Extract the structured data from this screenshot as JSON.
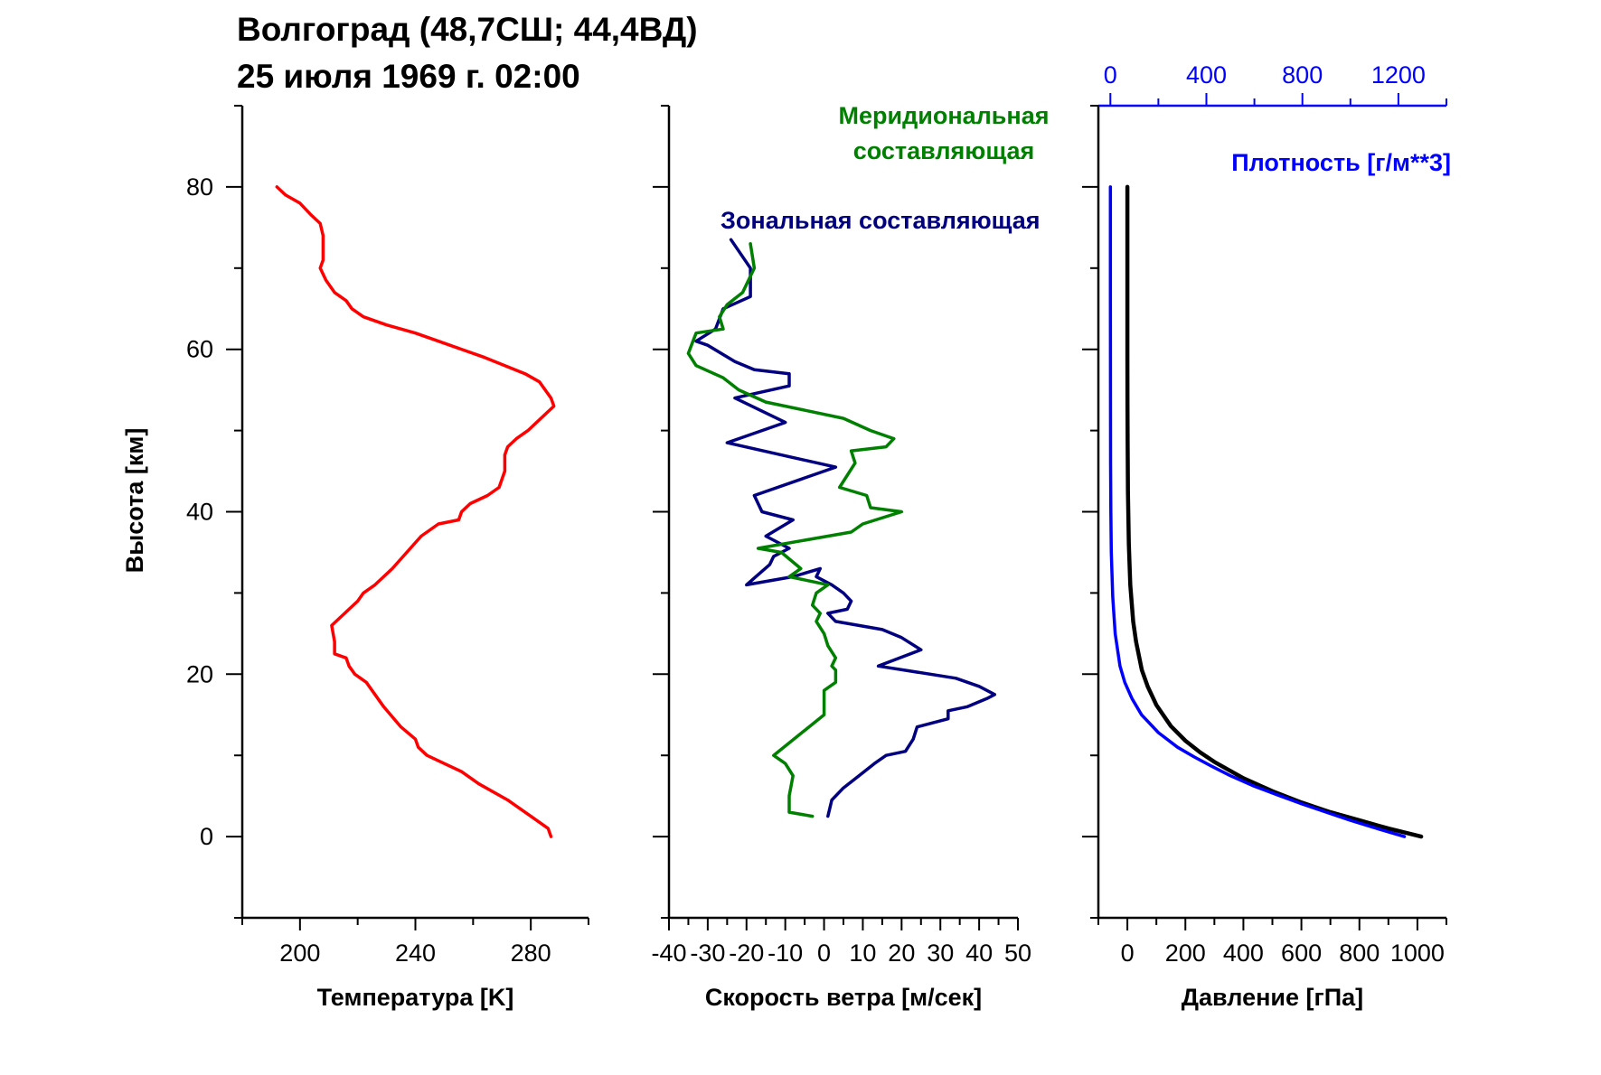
{
  "title": {
    "line1": "Волгоград (48,7СШ; 44,4ВД)",
    "line2": "25 июля 1969 г. 02:00"
  },
  "y_axis": {
    "label": "Высота [км]",
    "ylim": [
      -10,
      90
    ],
    "ticks": [
      0,
      20,
      40,
      60,
      80
    ]
  },
  "colors": {
    "temperature": "#ff0000",
    "zonal": "#000080",
    "meridional": "#008000",
    "pressure": "#000000",
    "density": "#0000ff",
    "axis": "#000000",
    "density_axis": "#0000ff"
  },
  "chart_data": [
    {
      "type": "line",
      "panel": "temperature",
      "xlabel": "Температура [K]",
      "ylabel": "Высота [км]",
      "xlim": [
        180,
        300
      ],
      "x_ticks": [
        200,
        240,
        280
      ],
      "ylim": [
        -10,
        90
      ],
      "grid": false,
      "series": [
        {
          "x": [
            287,
            286,
            280,
            272,
            262,
            256,
            250,
            244,
            241,
            240,
            235,
            229,
            225,
            223,
            219,
            217,
            216,
            212,
            212,
            211,
            214,
            217,
            220,
            222,
            226,
            229,
            232,
            237,
            242,
            248,
            255,
            256,
            259,
            265,
            269,
            271,
            271,
            272,
            275,
            279,
            282,
            285,
            288,
            287,
            283,
            278,
            264,
            252,
            240,
            230,
            222,
            218,
            216,
            212,
            209,
            207,
            208,
            208,
            208,
            207,
            204,
            200,
            195,
            192
          ],
          "y": [
            0,
            1,
            2.5,
            4.5,
            6.5,
            8,
            9,
            10,
            11,
            12,
            13.5,
            16,
            18,
            19,
            20,
            21,
            22,
            22.5,
            24,
            26,
            27,
            28,
            29,
            30,
            31,
            32,
            33,
            35,
            37,
            38.5,
            39,
            40,
            41,
            42,
            43,
            45,
            47,
            48,
            49,
            50,
            51,
            52,
            53,
            54,
            56,
            57,
            59,
            60.5,
            62,
            63,
            64,
            65,
            66,
            67,
            68.5,
            70,
            71,
            72,
            74,
            75.5,
            76.5,
            78,
            79,
            80
          ]
        }
      ]
    },
    {
      "type": "line",
      "panel": "wind",
      "xlabel": "Скорость ветра [м/сек]",
      "ylabel": "",
      "xlim": [
        -40,
        50
      ],
      "x_ticks": [
        -40,
        -30,
        -20,
        -10,
        0,
        10,
        20,
        30,
        40,
        50
      ],
      "ylim": [
        -10,
        90
      ],
      "grid": false,
      "series": [
        {
          "name": "Зональная составляющая",
          "x": [
            1,
            2,
            5,
            9,
            13,
            16,
            21,
            23,
            24,
            32,
            32,
            37,
            42,
            44,
            40,
            34,
            14,
            25,
            20,
            15,
            3,
            1,
            6,
            7,
            5,
            2,
            -2,
            -1,
            -8,
            -20,
            -14,
            -13,
            -9,
            -15,
            -8,
            -16,
            -18,
            3,
            -25,
            -10,
            -23,
            -9,
            -9,
            -18,
            -23,
            -30,
            -33,
            -28,
            -26,
            -19,
            -19,
            -24
          ],
          "y": [
            2.5,
            4.5,
            6,
            7.5,
            9,
            10,
            10.5,
            12,
            13.5,
            14.5,
            15.5,
            16,
            17,
            17.5,
            18.5,
            19.5,
            21,
            23,
            24.5,
            25.5,
            26.5,
            27.5,
            28,
            29,
            30,
            31,
            32,
            33,
            32,
            31,
            33.5,
            34.5,
            35.5,
            37,
            39,
            40,
            42,
            45.5,
            48.5,
            51,
            54,
            55.5,
            57,
            57.5,
            58.5,
            60.5,
            61,
            62.5,
            65,
            66.5,
            70,
            73.5
          ]
        },
        {
          "name": "Меридиональная составляющая",
          "x": [
            -3,
            -9,
            -9,
            -8,
            -10,
            -13,
            0,
            0,
            3,
            3,
            2,
            3,
            1,
            0,
            -2,
            -1,
            -3,
            -2,
            1,
            -9,
            -6,
            -11,
            -17,
            7,
            10,
            20,
            12,
            11,
            4,
            8,
            7,
            16,
            18,
            12,
            5,
            -15,
            -22,
            -26,
            -33,
            -35,
            -33,
            -26,
            -27,
            -25,
            -21,
            -18,
            -19
          ],
          "y": [
            2.5,
            3,
            5,
            7.5,
            9,
            10,
            15,
            18,
            19,
            20.5,
            21,
            22,
            23.5,
            25,
            26.5,
            27.5,
            28.5,
            30,
            31,
            32,
            33,
            35,
            35.5,
            37.5,
            38.5,
            40,
            40.5,
            42,
            43,
            46,
            47.5,
            48,
            49,
            50,
            51.5,
            53.5,
            55,
            56.5,
            58,
            59.5,
            62,
            62.5,
            64,
            65.5,
            67,
            70,
            73
          ]
        }
      ]
    },
    {
      "type": "line",
      "panel": "pressure_density",
      "xlabel": "Давление [гПа]",
      "ylabel": "",
      "xlim": [
        -100,
        1100
      ],
      "x_ticks": [
        0,
        200,
        400,
        600,
        800,
        1000
      ],
      "ylim": [
        -10,
        90
      ],
      "grid": false,
      "secondary_x_axis": {
        "label": "Плотность [г/м**3]",
        "position": "top",
        "xlim": [
          -50,
          1400
        ],
        "x_ticks": [
          0,
          400,
          800,
          1200
        ]
      },
      "series": [
        {
          "name": "Давление [гПа]",
          "axis": "bottom",
          "x": [
            1013,
            900,
            800,
            700,
            600,
            500,
            400,
            300,
            250,
            200,
            150,
            100,
            70,
            50,
            30,
            20,
            10,
            5,
            2,
            1,
            0.5,
            0.2,
            0.05,
            0.01
          ],
          "y": [
            0,
            1,
            2,
            3,
            4.2,
            5.6,
            7.2,
            9.2,
            10.4,
            11.8,
            13.6,
            16.2,
            18.5,
            20.5,
            24,
            26.5,
            31,
            36,
            42.5,
            48,
            53,
            59,
            68,
            80
          ]
        },
        {
          "name": "Плотность [г/м**3]",
          "axis": "top",
          "x": [
            1225,
            1110,
            1000,
            900,
            800,
            700,
            600,
            500,
            420,
            350,
            280,
            200,
            130,
            90,
            60,
            40,
            20,
            10,
            4,
            2,
            1,
            0.3,
            0.05,
            0.01
          ],
          "y": [
            0,
            1,
            2,
            3,
            4,
            5.1,
            6.2,
            7.5,
            8.7,
            9.8,
            11,
            12.8,
            15,
            17,
            19,
            21,
            25,
            29.5,
            35,
            40,
            46,
            55,
            67,
            80
          ]
        }
      ]
    }
  ]
}
